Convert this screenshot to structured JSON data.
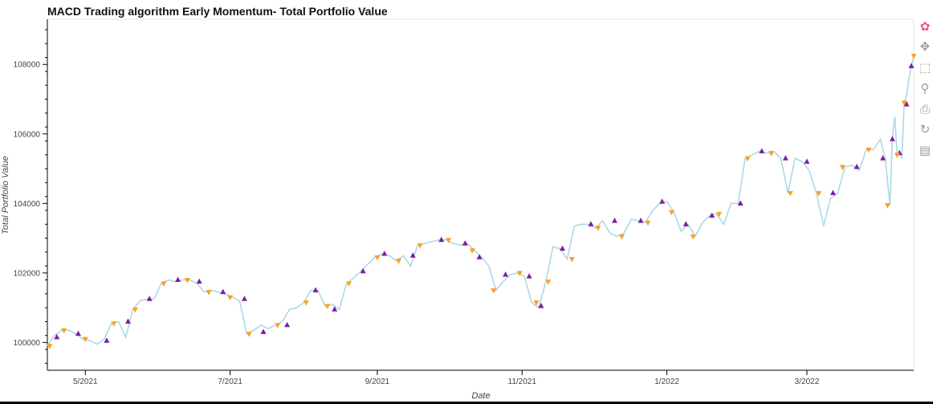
{
  "chart_data": {
    "type": "line",
    "title": "MACD Trading algorithm Early Momentum- Total Portfolio Value",
    "xlabel": "Date",
    "ylabel": "Total Portfolio Value",
    "x_range": [
      "2021-04-15",
      "2022-04-15"
    ],
    "ylim": [
      99200,
      109300
    ],
    "x_ticks": [
      {
        "date": "2021-05-01",
        "label": "5/2021"
      },
      {
        "date": "2021-07-01",
        "label": "7/2021"
      },
      {
        "date": "2021-09-01",
        "label": "9/2021"
      },
      {
        "date": "2021-11-01",
        "label": "11/2021"
      },
      {
        "date": "2022-01-01",
        "label": "1/2022"
      },
      {
        "date": "2022-03-01",
        "label": "3/2022"
      }
    ],
    "y_ticks": [
      100000,
      102000,
      104000,
      106000,
      108000
    ],
    "grid": false,
    "series": [
      {
        "type": "line",
        "color": "#add8e6",
        "points": [
          [
            "2021-04-15",
            99900
          ],
          [
            "2021-04-18",
            100200
          ],
          [
            "2021-04-21",
            100350
          ],
          [
            "2021-04-24",
            100350
          ],
          [
            "2021-04-27",
            100250
          ],
          [
            "2021-04-30",
            100100
          ],
          [
            "2021-05-03",
            100050
          ],
          [
            "2021-05-06",
            99950
          ],
          [
            "2021-05-09",
            100100
          ],
          [
            "2021-05-12",
            100550
          ],
          [
            "2021-05-15",
            100600
          ],
          [
            "2021-05-18",
            100150
          ],
          [
            "2021-05-21",
            100950
          ],
          [
            "2021-05-24",
            101200
          ],
          [
            "2021-05-27",
            101250
          ],
          [
            "2021-05-30",
            101250
          ],
          [
            "2021-06-02",
            101700
          ],
          [
            "2021-06-05",
            101800
          ],
          [
            "2021-06-08",
            101750
          ],
          [
            "2021-06-11",
            101800
          ],
          [
            "2021-06-14",
            101800
          ],
          [
            "2021-06-17",
            101700
          ],
          [
            "2021-06-20",
            101450
          ],
          [
            "2021-06-23",
            101500
          ],
          [
            "2021-06-26",
            101450
          ],
          [
            "2021-06-29",
            101400
          ],
          [
            "2021-07-02",
            101300
          ],
          [
            "2021-07-05",
            101200
          ],
          [
            "2021-07-08",
            100250
          ],
          [
            "2021-07-11",
            100350
          ],
          [
            "2021-07-14",
            100500
          ],
          [
            "2021-07-17",
            100400
          ],
          [
            "2021-07-20",
            100500
          ],
          [
            "2021-07-23",
            100600
          ],
          [
            "2021-07-26",
            100950
          ],
          [
            "2021-07-29",
            101000
          ],
          [
            "2021-08-01",
            101150
          ],
          [
            "2021-08-04",
            101500
          ],
          [
            "2021-08-07",
            101500
          ],
          [
            "2021-08-10",
            101050
          ],
          [
            "2021-08-13",
            101100
          ],
          [
            "2021-08-16",
            100950
          ],
          [
            "2021-08-19",
            101700
          ],
          [
            "2021-08-22",
            101850
          ],
          [
            "2021-08-25",
            102050
          ],
          [
            "2021-08-28",
            102250
          ],
          [
            "2021-08-31",
            102450
          ],
          [
            "2021-09-03",
            102550
          ],
          [
            "2021-09-06",
            102500
          ],
          [
            "2021-09-09",
            102350
          ],
          [
            "2021-09-12",
            102500
          ],
          [
            "2021-09-15",
            102200
          ],
          [
            "2021-09-18",
            102800
          ],
          [
            "2021-09-21",
            102850
          ],
          [
            "2021-09-24",
            102900
          ],
          [
            "2021-09-27",
            102950
          ],
          [
            "2021-09-30",
            102950
          ],
          [
            "2021-10-03",
            102850
          ],
          [
            "2021-10-06",
            102800
          ],
          [
            "2021-10-09",
            102850
          ],
          [
            "2021-10-12",
            102650
          ],
          [
            "2021-10-15",
            102450
          ],
          [
            "2021-10-18",
            102200
          ],
          [
            "2021-10-21",
            101500
          ],
          [
            "2021-10-24",
            101750
          ],
          [
            "2021-10-27",
            101950
          ],
          [
            "2021-10-30",
            102000
          ],
          [
            "2021-11-02",
            101900
          ],
          [
            "2021-11-05",
            101150
          ],
          [
            "2021-11-08",
            101000
          ],
          [
            "2021-11-11",
            101750
          ],
          [
            "2021-11-14",
            102750
          ],
          [
            "2021-11-17",
            102700
          ],
          [
            "2021-11-20",
            102400
          ],
          [
            "2021-11-23",
            103350
          ],
          [
            "2021-11-26",
            103400
          ],
          [
            "2021-11-29",
            103400
          ],
          [
            "2021-12-02",
            103300
          ],
          [
            "2021-12-05",
            103500
          ],
          [
            "2021-12-08",
            103150
          ],
          [
            "2021-12-11",
            103050
          ],
          [
            "2021-12-14",
            103150
          ],
          [
            "2021-12-17",
            103550
          ],
          [
            "2021-12-20",
            103500
          ],
          [
            "2021-12-23",
            103450
          ],
          [
            "2021-12-26",
            103800
          ],
          [
            "2021-12-29",
            104000
          ],
          [
            "2022-01-01",
            104050
          ],
          [
            "2022-01-04",
            103750
          ],
          [
            "2022-01-07",
            103200
          ],
          [
            "2022-01-10",
            103400
          ],
          [
            "2022-01-13",
            103050
          ],
          [
            "2022-01-16",
            103450
          ],
          [
            "2022-01-19",
            103650
          ],
          [
            "2022-01-22",
            103700
          ],
          [
            "2022-01-25",
            103400
          ],
          [
            "2022-01-28",
            104000
          ],
          [
            "2022-01-31",
            104000
          ],
          [
            "2022-02-03",
            105300
          ],
          [
            "2022-02-06",
            105400
          ],
          [
            "2022-02-09",
            105500
          ],
          [
            "2022-02-12",
            105450
          ],
          [
            "2022-02-15",
            105500
          ],
          [
            "2022-02-18",
            105300
          ],
          [
            "2022-02-21",
            104300
          ],
          [
            "2022-02-24",
            105300
          ],
          [
            "2022-02-27",
            105200
          ],
          [
            "2022-03-02",
            104950
          ],
          [
            "2022-03-05",
            104300
          ],
          [
            "2022-03-08",
            103350
          ],
          [
            "2022-03-11",
            104150
          ],
          [
            "2022-03-14",
            104300
          ],
          [
            "2022-03-17",
            105050
          ],
          [
            "2022-03-20",
            105100
          ],
          [
            "2022-03-23",
            104950
          ],
          [
            "2022-03-26",
            105550
          ],
          [
            "2022-03-29",
            105550
          ],
          [
            "2022-04-01",
            105850
          ],
          [
            "2022-04-03",
            105300
          ],
          [
            "2022-04-05",
            103950
          ],
          [
            "2022-04-06",
            105900
          ],
          [
            "2022-04-07",
            106500
          ],
          [
            "2022-04-08",
            105400
          ],
          [
            "2022-04-09",
            105500
          ],
          [
            "2022-04-10",
            105300
          ],
          [
            "2022-04-11",
            106900
          ],
          [
            "2022-04-12",
            107100
          ],
          [
            "2022-04-13",
            107600
          ],
          [
            "2022-04-14",
            107950
          ],
          [
            "2022-04-15",
            108250
          ]
        ]
      },
      {
        "type": "scatter",
        "marker": "triangle-up",
        "color": "#7b1fa2",
        "points": [
          [
            "2021-04-19",
            100150
          ],
          [
            "2021-04-28",
            100250
          ],
          [
            "2021-05-10",
            100050
          ],
          [
            "2021-05-19",
            100600
          ],
          [
            "2021-05-28",
            101250
          ],
          [
            "2021-06-09",
            101800
          ],
          [
            "2021-06-18",
            101750
          ],
          [
            "2021-06-28",
            101450
          ],
          [
            "2021-07-07",
            101250
          ],
          [
            "2021-07-15",
            100300
          ],
          [
            "2021-07-25",
            100500
          ],
          [
            "2021-08-06",
            101500
          ],
          [
            "2021-08-14",
            100950
          ],
          [
            "2021-08-26",
            102050
          ],
          [
            "2021-09-04",
            102550
          ],
          [
            "2021-09-16",
            102500
          ],
          [
            "2021-09-28",
            102950
          ],
          [
            "2021-10-08",
            102850
          ],
          [
            "2021-10-14",
            102450
          ],
          [
            "2021-10-25",
            101950
          ],
          [
            "2021-11-04",
            101900
          ],
          [
            "2021-11-09",
            101050
          ],
          [
            "2021-11-18",
            102700
          ],
          [
            "2021-11-30",
            103400
          ],
          [
            "2021-12-10",
            103500
          ],
          [
            "2021-12-21",
            103500
          ],
          [
            "2021-12-30",
            104050
          ],
          [
            "2022-01-09",
            103400
          ],
          [
            "2022-01-20",
            103650
          ],
          [
            "2022-02-01",
            104000
          ],
          [
            "2022-02-10",
            105500
          ],
          [
            "2022-02-20",
            105300
          ],
          [
            "2022-03-01",
            105200
          ],
          [
            "2022-03-12",
            104300
          ],
          [
            "2022-03-22",
            105050
          ],
          [
            "2022-04-02",
            105300
          ],
          [
            "2022-04-06",
            105850
          ],
          [
            "2022-04-09",
            105450
          ],
          [
            "2022-04-12",
            106850
          ],
          [
            "2022-04-14",
            107950
          ]
        ]
      },
      {
        "type": "scatter",
        "marker": "triangle-down",
        "color": "#ff9f1c",
        "points": [
          [
            "2021-04-16",
            99900
          ],
          [
            "2021-04-22",
            100350
          ],
          [
            "2021-05-01",
            100100
          ],
          [
            "2021-05-13",
            100550
          ],
          [
            "2021-05-22",
            100950
          ],
          [
            "2021-06-03",
            101700
          ],
          [
            "2021-06-13",
            101800
          ],
          [
            "2021-06-22",
            101450
          ],
          [
            "2021-07-01",
            101300
          ],
          [
            "2021-07-09",
            100250
          ],
          [
            "2021-07-21",
            100500
          ],
          [
            "2021-08-02",
            101150
          ],
          [
            "2021-08-11",
            101050
          ],
          [
            "2021-08-20",
            101700
          ],
          [
            "2021-09-01",
            102450
          ],
          [
            "2021-09-10",
            102350
          ],
          [
            "2021-09-19",
            102800
          ],
          [
            "2021-10-01",
            102950
          ],
          [
            "2021-10-11",
            102650
          ],
          [
            "2021-10-20",
            101500
          ],
          [
            "2021-10-31",
            102000
          ],
          [
            "2021-11-07",
            101150
          ],
          [
            "2021-11-12",
            101750
          ],
          [
            "2021-11-22",
            102400
          ],
          [
            "2021-12-03",
            103300
          ],
          [
            "2021-12-13",
            103050
          ],
          [
            "2021-12-24",
            103450
          ],
          [
            "2022-01-03",
            103750
          ],
          [
            "2022-01-12",
            103050
          ],
          [
            "2022-01-23",
            103700
          ],
          [
            "2022-02-04",
            105300
          ],
          [
            "2022-02-14",
            105450
          ],
          [
            "2022-02-22",
            104300
          ],
          [
            "2022-03-06",
            104300
          ],
          [
            "2022-03-16",
            105050
          ],
          [
            "2022-03-27",
            105550
          ],
          [
            "2022-04-04",
            103950
          ],
          [
            "2022-04-08",
            105400
          ],
          [
            "2022-04-11",
            106900
          ],
          [
            "2022-04-15",
            108250
          ]
        ]
      }
    ]
  },
  "toolbar": {
    "tools": [
      {
        "name": "bokeh-logo-icon",
        "glyph": "✿",
        "active": false
      },
      {
        "name": "pan-icon",
        "glyph": "✥",
        "active": true
      },
      {
        "name": "box-zoom-icon",
        "glyph": "⬚",
        "active": false
      },
      {
        "name": "wheel-zoom-icon",
        "glyph": "⚲",
        "active": false
      },
      {
        "name": "save-icon",
        "glyph": "⎙",
        "active": false
      },
      {
        "name": "reset-icon",
        "glyph": "↻",
        "active": false
      },
      {
        "name": "hover-icon",
        "glyph": "▤",
        "active": true
      }
    ]
  }
}
